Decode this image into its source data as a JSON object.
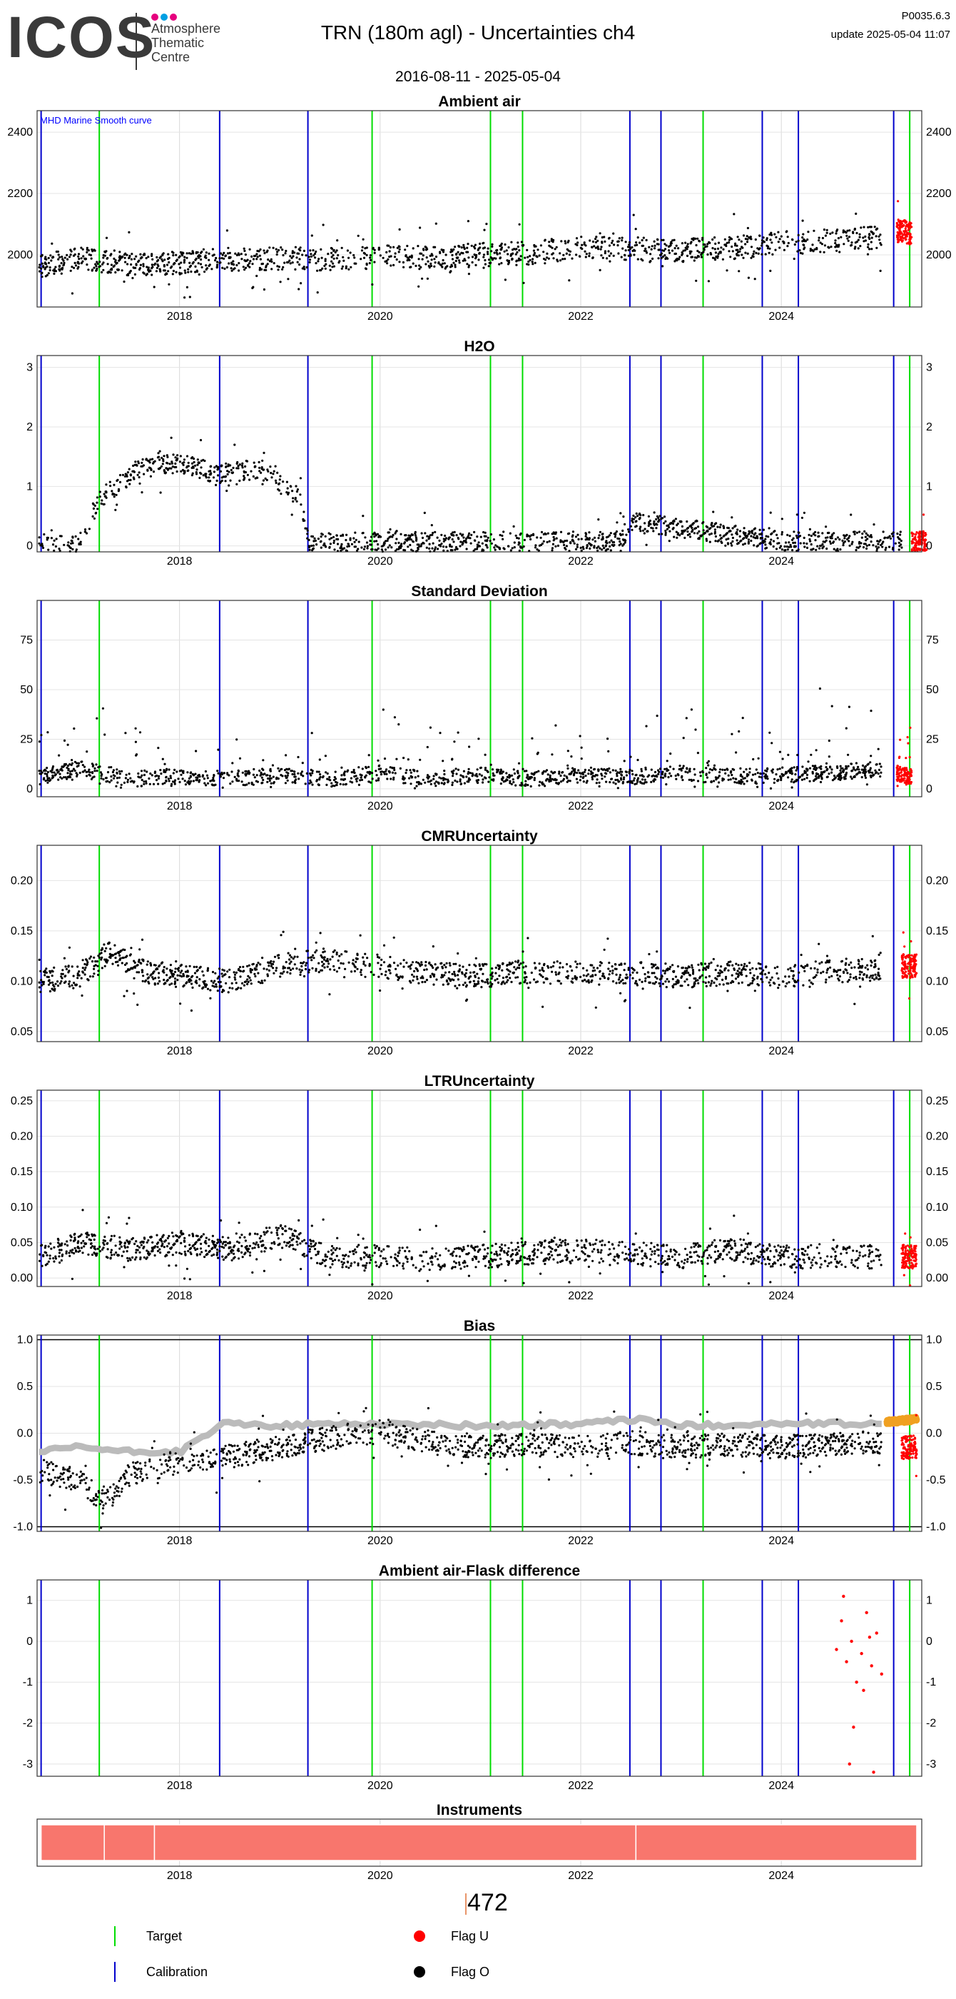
{
  "header": {
    "logo_text": "ICOS",
    "logo_subtitle": [
      "Atmosphere",
      "Thematic",
      "Centre"
    ],
    "title": "TRN  (180m agl) - Uncertainties ch4",
    "date_range": "2016-08-11 - 2025-05-04",
    "code": "P0035.6.3",
    "update": "update  2025-05-04 11:07"
  },
  "colors": {
    "target": "#00dd00",
    "calibration": "#0000cc",
    "flag_u": "#ff0000",
    "flag_o": "#000000",
    "bias_ref": "#bbbbbb",
    "bias_recent": "#f0a020",
    "instrument": "#f8766d",
    "logo_dots": [
      "#e6007e",
      "#00a0e3",
      "#e6007e"
    ]
  },
  "target_dates": [
    2017.2,
    2019.92,
    2021.1,
    2021.42,
    2023.22,
    2025.28
  ],
  "calibration_dates": [
    2016.62,
    2018.4,
    2019.28,
    2022.49,
    2022.8,
    2023.81,
    2024.17,
    2025.12
  ],
  "chart_data": [
    {
      "type": "scatter",
      "title": "Ambient air",
      "annotation": "MHD Marine Smooth curve",
      "x_ticks": [
        "2018",
        "2020",
        "2022",
        "2024"
      ],
      "y_ticks": [
        2000,
        2200,
        2400
      ],
      "ylim": [
        1830,
        2470
      ],
      "series": [
        {
          "flag": "O",
          "x": [
            2016.6,
            2017.0,
            2017.5,
            2018.0,
            2018.5,
            2019.0,
            2019.5,
            2020.0,
            2020.5,
            2021.0,
            2021.5,
            2022.0,
            2022.5,
            2023.0,
            2023.5,
            2024.0,
            2024.5,
            2025.0
          ],
          "y": [
            1960,
            1990,
            1970,
            1975,
            1985,
            1990,
            1985,
            1995,
            1990,
            2000,
            2005,
            2025,
            2020,
            2015,
            2020,
            2040,
            2045,
            2060
          ]
        },
        {
          "flag": "U",
          "x": [
            2025.15,
            2025.3
          ],
          "y": [
            2080,
            2070
          ]
        }
      ],
      "grid": true
    },
    {
      "type": "scatter",
      "title": "H2O",
      "x_ticks": [
        "2018",
        "2020",
        "2022",
        "2024"
      ],
      "y_ticks": [
        0,
        1,
        2,
        3
      ],
      "ylim": [
        -0.1,
        3.2
      ],
      "series": [
        {
          "flag": "O",
          "x": [
            2016.6,
            2017.0,
            2017.2,
            2017.6,
            2018.0,
            2018.4,
            2018.8,
            2019.2,
            2019.3,
            2020.5,
            2022.4,
            2022.5,
            2024.0,
            2025.2
          ],
          "y": [
            0.03,
            0.03,
            0.8,
            1.3,
            1.4,
            1.2,
            1.3,
            0.8,
            0.05,
            0.07,
            0.08,
            0.4,
            0.08,
            0.08
          ]
        },
        {
          "flag": "U",
          "x": [
            2025.3
          ],
          "y": [
            0.08
          ]
        }
      ],
      "grid": true
    },
    {
      "type": "scatter",
      "title": "Standard Deviation",
      "x_ticks": [
        "2018",
        "2020",
        "2022",
        "2024"
      ],
      "y_ticks": [
        0,
        25,
        50,
        75
      ],
      "ylim": [
        -4,
        95
      ],
      "series": [
        {
          "flag": "O",
          "x": [
            2016.6,
            2017.0,
            2017.5,
            2018.0,
            2018.5,
            2019.0,
            2019.5,
            2020.0,
            2020.5,
            2021.0,
            2021.5,
            2022.0,
            2022.5,
            2023.0,
            2023.5,
            2024.0,
            2024.5,
            2025.0
          ],
          "y": [
            6,
            10,
            5,
            6,
            5,
            7,
            5,
            8,
            5,
            7,
            5,
            7,
            6,
            8,
            6,
            7,
            8,
            10
          ]
        },
        {
          "flag": "U",
          "x": [
            2025.15,
            2025.3
          ],
          "y": [
            8,
            6
          ]
        }
      ],
      "grid": true
    },
    {
      "type": "scatter",
      "title": "CMRUncertainty",
      "x_ticks": [
        "2018",
        "2020",
        "2022",
        "2024"
      ],
      "y_ticks": [
        0.05,
        0.1,
        0.15,
        0.2
      ],
      "ylim": [
        0.04,
        0.235
      ],
      "series": [
        {
          "flag": "O",
          "x": [
            2016.6,
            2017.0,
            2017.3,
            2017.6,
            2018.0,
            2018.5,
            2019.0,
            2019.5,
            2020.0,
            2020.5,
            2021.0,
            2021.5,
            2022.0,
            2022.5,
            2023.0,
            2023.5,
            2024.0,
            2024.5,
            2025.0
          ],
          "y": [
            0.1,
            0.105,
            0.13,
            0.11,
            0.105,
            0.1,
            0.115,
            0.122,
            0.115,
            0.108,
            0.105,
            0.11,
            0.108,
            0.108,
            0.105,
            0.108,
            0.105,
            0.11,
            0.112
          ]
        },
        {
          "flag": "U",
          "x": [
            2025.2
          ],
          "y": [
            0.115
          ]
        }
      ],
      "grid": true
    },
    {
      "type": "scatter",
      "title": "LTRUncertainty",
      "x_ticks": [
        "2018",
        "2020",
        "2022",
        "2024"
      ],
      "y_ticks": [
        0.0,
        0.05,
        0.1,
        0.15,
        0.2,
        0.25
      ],
      "ylim": [
        -0.012,
        0.265
      ],
      "series": [
        {
          "flag": "O",
          "x": [
            2016.6,
            2017.0,
            2017.5,
            2018.0,
            2018.5,
            2019.0,
            2019.5,
            2020.0,
            2020.5,
            2021.0,
            2021.5,
            2022.0,
            2022.5,
            2023.0,
            2023.5,
            2024.0,
            2024.5,
            2025.0
          ],
          "y": [
            0.03,
            0.05,
            0.04,
            0.05,
            0.04,
            0.06,
            0.03,
            0.03,
            0.025,
            0.03,
            0.035,
            0.04,
            0.035,
            0.03,
            0.04,
            0.03,
            0.03,
            0.03
          ]
        },
        {
          "flag": "U",
          "x": [
            2025.2
          ],
          "y": [
            0.03
          ]
        }
      ],
      "grid": true
    },
    {
      "type": "line",
      "title": "Bias",
      "x_ticks": [
        "2018",
        "2020",
        "2022",
        "2024"
      ],
      "y_ticks": [
        -1.0,
        -0.5,
        0.0,
        0.5,
        1.0
      ],
      "ylim": [
        -1.05,
        1.05
      ],
      "series": [
        {
          "role": "reference",
          "x": [
            2016.6,
            2017.0,
            2017.5,
            2018.0,
            2018.3,
            2018.4,
            2019.0,
            2019.5,
            2020.0,
            2021.0,
            2022.0,
            2022.6,
            2023.0,
            2024.0,
            2025.0
          ],
          "y": [
            -0.2,
            -0.15,
            -0.2,
            -0.2,
            0.0,
            0.1,
            0.08,
            0.1,
            0.1,
            0.08,
            0.1,
            0.15,
            0.08,
            0.1,
            0.1
          ]
        },
        {
          "role": "recent",
          "x": [
            2025.05,
            2025.35
          ],
          "y": [
            0.12,
            0.15
          ]
        },
        {
          "flag": "O",
          "x": [
            2016.6,
            2017.0,
            2017.25,
            2017.5,
            2018.0,
            2018.5,
            2019.0,
            2019.5,
            2020.0,
            2020.5,
            2021.0,
            2021.5,
            2022.0,
            2022.5,
            2023.0,
            2023.5,
            2024.0,
            2024.5,
            2025.0
          ],
          "y": [
            -0.4,
            -0.5,
            -0.75,
            -0.45,
            -0.3,
            -0.25,
            -0.15,
            -0.05,
            0.02,
            -0.1,
            -0.15,
            -0.12,
            -0.15,
            -0.1,
            -0.15,
            -0.12,
            -0.15,
            -0.12,
            -0.1
          ]
        },
        {
          "flag": "U",
          "x": [
            2025.2
          ],
          "y": [
            -0.15
          ]
        }
      ],
      "hlines": [
        -1.0,
        1.0
      ],
      "grid": true
    },
    {
      "type": "scatter",
      "title": "Ambient air-Flask difference",
      "x_ticks": [
        "2018",
        "2020",
        "2022",
        "2024"
      ],
      "y_ticks": [
        -3,
        -2,
        -1,
        0,
        1
      ],
      "ylim": [
        -3.3,
        1.5
      ],
      "series": [
        {
          "flag": "U",
          "x": [
            2024.55,
            2024.6,
            2024.65,
            2024.7,
            2024.75,
            2024.8,
            2024.85,
            2024.9,
            2024.95,
            2025.0,
            2024.62,
            2024.72,
            2024.82,
            2024.92,
            2024.68,
            2024.88
          ],
          "y": [
            -0.2,
            0.5,
            -0.5,
            0.0,
            -1.0,
            -0.3,
            0.7,
            -0.6,
            0.2,
            -0.8,
            1.1,
            -2.1,
            -1.2,
            -3.2,
            -3.0,
            0.1
          ]
        }
      ],
      "grid": true
    },
    {
      "type": "bar",
      "title": "Instruments",
      "x_ticks": [
        "2018",
        "2020",
        "2022",
        "2024"
      ],
      "segments": [
        [
          2016.62,
          2017.25
        ],
        [
          2017.25,
          2017.75
        ],
        [
          2017.75,
          2022.55
        ],
        [
          2022.55,
          2025.35
        ]
      ],
      "instrument": "472",
      "grid": true
    }
  ],
  "legend": [
    {
      "label": "Target",
      "kind": "vline",
      "color": "#00dd00"
    },
    {
      "label": "Flag U",
      "kind": "dot",
      "color": "#ff0000"
    },
    {
      "label": "Calibration",
      "kind": "vline",
      "color": "#0000cc"
    },
    {
      "label": "Flag O",
      "kind": "dot",
      "color": "#000000"
    }
  ]
}
